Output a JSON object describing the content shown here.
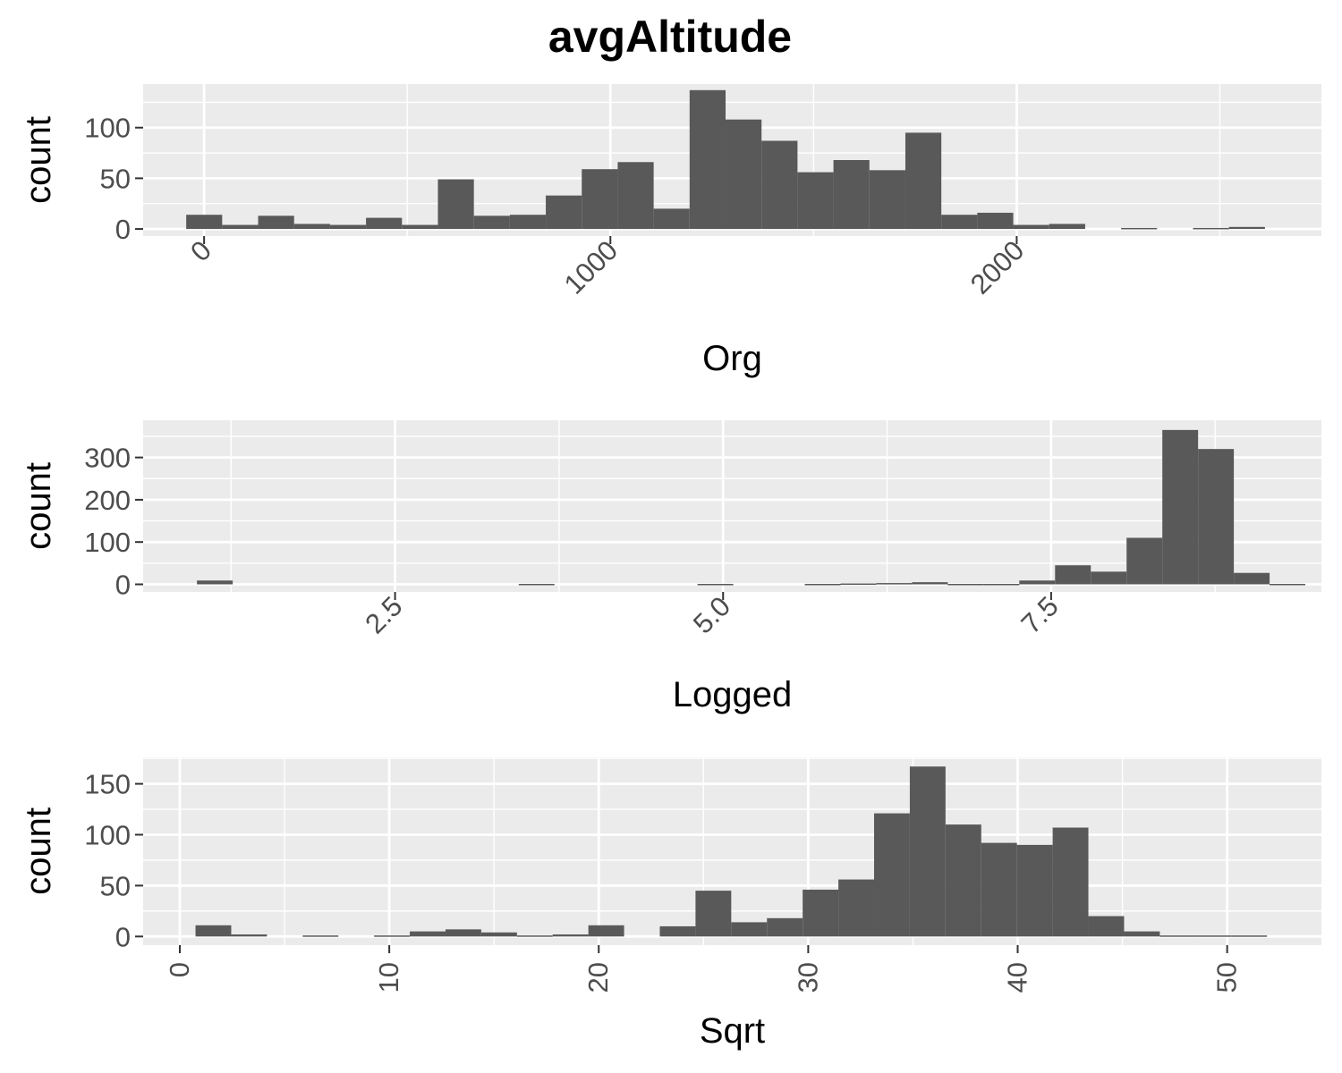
{
  "figure": {
    "title": "avgAltitude"
  },
  "colors": {
    "panel_bg": "#ebebeb",
    "grid": "#ffffff",
    "bar": "#595959",
    "tick_text": "#4d4d4d",
    "tick_mark": "#333333",
    "text": "#000000"
  },
  "chart_data": [
    {
      "type": "bar",
      "subtype": "histogram",
      "xlabel": "Org",
      "ylabel": "count",
      "xlim": [
        -150,
        2750
      ],
      "ylim": [
        -7,
        143
      ],
      "x_ticks": [
        0,
        1000,
        2000
      ],
      "x_tick_labels": [
        "0",
        "1000",
        "2000"
      ],
      "x_tick_rotation": -45,
      "y_ticks": [
        0,
        50,
        100
      ],
      "y_tick_labels": [
        "0",
        "50",
        "100"
      ],
      "grid": true,
      "bin_width": 88.5,
      "bin_start": -44,
      "counts": [
        14,
        4,
        13,
        5,
        4,
        11,
        4,
        49,
        13,
        14,
        33,
        59,
        66,
        20,
        137,
        108,
        87,
        56,
        68,
        58,
        95,
        14,
        16,
        4,
        5,
        0,
        1,
        0,
        1,
        2
      ]
    },
    {
      "type": "bar",
      "subtype": "histogram",
      "xlabel": "Logged",
      "ylabel": "count",
      "xlim": [
        0.58,
        9.56
      ],
      "ylim": [
        -18,
        388
      ],
      "x_ticks": [
        2.5,
        5.0,
        7.5
      ],
      "x_tick_labels": [
        "2.5",
        "5.0",
        "7.5"
      ],
      "x_tick_rotation": -45,
      "y_ticks": [
        0,
        100,
        200,
        300
      ],
      "y_tick_labels": [
        "0",
        "100",
        "200",
        "300"
      ],
      "grid": true,
      "bin_width": 0.2725,
      "bin_start": 0.99,
      "counts": [
        9,
        0,
        0,
        0,
        0,
        0,
        0,
        0,
        0,
        1,
        0,
        0,
        0,
        0,
        1,
        0,
        0,
        1,
        2,
        3,
        5,
        1,
        1,
        9,
        45,
        30,
        110,
        365,
        320,
        27,
        1
      ]
    },
    {
      "type": "bar",
      "subtype": "histogram",
      "xlabel": "Sqrt",
      "ylabel": "count",
      "xlim": [
        -1.75,
        54.5
      ],
      "ylim": [
        -8.5,
        176
      ],
      "x_ticks": [
        0,
        10,
        20,
        30,
        40,
        50
      ],
      "x_tick_labels": [
        "0",
        "10",
        "20",
        "30",
        "40",
        "50"
      ],
      "x_tick_rotation": -90,
      "y_ticks": [
        0,
        50,
        100,
        150
      ],
      "y_tick_labels": [
        "0",
        "50",
        "100",
        "150"
      ],
      "grid": true,
      "bin_width": 1.705,
      "bin_start": 0.75,
      "counts": [
        11,
        2,
        0,
        1,
        0,
        1,
        5,
        7,
        4,
        1,
        2,
        11,
        0,
        10,
        45,
        14,
        18,
        46,
        56,
        121,
        167,
        110,
        92,
        90,
        107,
        20,
        5,
        1,
        1,
        1
      ]
    }
  ]
}
